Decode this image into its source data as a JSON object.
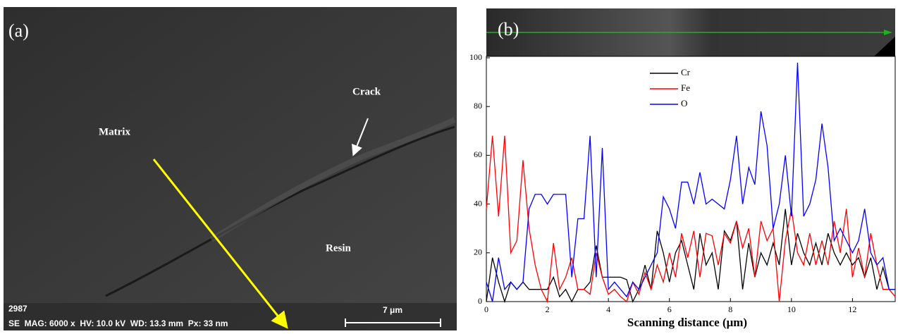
{
  "panel_a": {
    "label": "(a)",
    "annotations": [
      "Matrix",
      "Crack",
      "Resin"
    ],
    "id_text": "2987",
    "info_bar": "SE  MAG: 6000 x  HV: 10.0 kV  WD: 13.3 mm  Px: 33 nm",
    "scale_bar": "7 μm"
  },
  "chart_data": {
    "type": "line",
    "panel_label": "(b)",
    "x_label": "Scanning distance (μm)",
    "x": [
      0,
      0.2,
      0.4,
      0.6,
      0.8,
      1.0,
      1.2,
      1.4,
      1.6,
      1.8,
      2.0,
      2.2,
      2.4,
      2.6,
      2.8,
      3.0,
      3.2,
      3.4,
      3.6,
      3.8,
      4.0,
      4.2,
      4.4,
      4.6,
      4.8,
      5.0,
      5.2,
      5.4,
      5.6,
      5.8,
      6.0,
      6.2,
      6.4,
      6.6,
      6.8,
      7.0,
      7.2,
      7.4,
      7.6,
      7.8,
      8.0,
      8.2,
      8.4,
      8.6,
      8.8,
      9.0,
      9.2,
      9.4,
      9.6,
      9.8,
      10.0,
      10.2,
      10.4,
      10.6,
      10.8,
      11.0,
      11.2,
      11.4,
      11.6,
      11.8,
      12.0,
      12.2,
      12.4,
      12.6,
      12.8,
      13.0,
      13.2,
      13.4
    ],
    "series": [
      {
        "name": "Cr",
        "color": "#000000",
        "values": [
          0,
          18,
          8,
          0,
          8,
          5,
          8,
          5,
          5,
          5,
          5,
          10,
          2,
          5,
          0,
          5,
          5,
          8,
          23,
          10,
          10,
          10,
          10,
          9,
          0,
          5,
          15,
          5,
          29,
          20,
          8,
          20,
          25,
          15,
          5,
          28,
          15,
          20,
          5,
          29,
          25,
          33,
          5,
          24,
          10,
          20,
          15,
          24,
          15,
          38,
          15,
          28,
          20,
          15,
          24,
          15,
          28,
          20,
          15,
          20,
          15,
          18,
          10,
          18,
          5,
          14,
          5,
          5
        ]
      },
      {
        "name": "Fe",
        "color": "#ff0000",
        "values": [
          38,
          68,
          35,
          68,
          20,
          25,
          58,
          30,
          15,
          5,
          0,
          24,
          5,
          10,
          18,
          5,
          5,
          3,
          20,
          10,
          3,
          5,
          2,
          0,
          8,
          3,
          12,
          5,
          15,
          8,
          20,
          10,
          28,
          18,
          29,
          10,
          28,
          27,
          15,
          28,
          24,
          33,
          22,
          30,
          10,
          33,
          25,
          30,
          0,
          25,
          38,
          20,
          15,
          28,
          15,
          25,
          15,
          33,
          20,
          38,
          10,
          22,
          10,
          28,
          15,
          5,
          5,
          2
        ]
      },
      {
        "name": "O",
        "color": "#0000ff",
        "values": [
          8,
          0,
          18,
          5,
          8,
          5,
          8,
          38,
          44,
          44,
          40,
          44,
          44,
          44,
          10,
          34,
          34,
          68,
          10,
          63,
          5,
          8,
          5,
          2,
          8,
          5,
          10,
          15,
          20,
          43,
          38,
          30,
          49,
          49,
          40,
          53,
          40,
          42,
          40,
          38,
          50,
          68,
          40,
          55,
          48,
          78,
          64,
          30,
          40,
          60,
          35,
          98,
          35,
          40,
          50,
          73,
          55,
          25,
          30,
          25,
          20,
          25,
          38,
          20,
          15,
          18,
          5,
          5
        ]
      }
    ],
    "xlim": [
      0,
      13.4
    ],
    "ylim": [
      0,
      100
    ],
    "xticks": [
      0,
      2,
      4,
      6,
      8,
      10,
      12
    ],
    "yticks": [
      0,
      20,
      40,
      60,
      80,
      100
    ]
  }
}
